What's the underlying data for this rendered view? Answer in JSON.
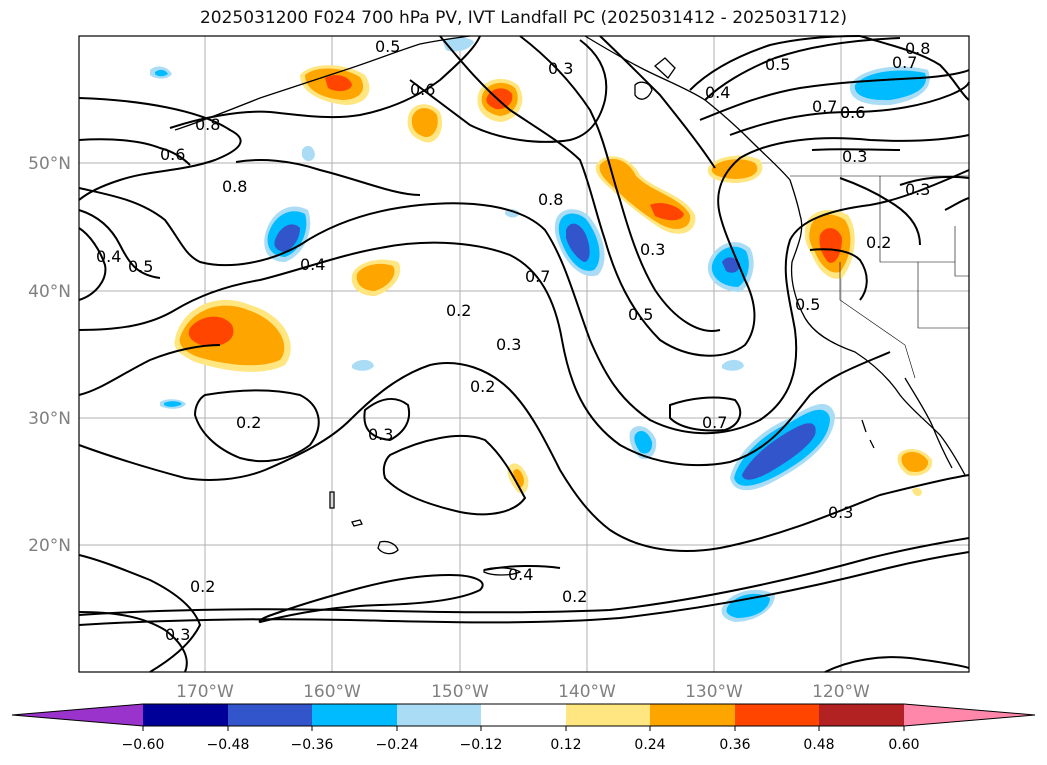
{
  "title": "2025031200 F024 700 hPa PV, IVT Landfall PC (2025031412 - 2025031712)",
  "map": {
    "lon_ticks": [
      "170°W",
      "160°W",
      "150°W",
      "140°W",
      "130°W",
      "120°W"
    ],
    "lat_ticks": [
      "50°N",
      "40°N",
      "30°N",
      "20°N"
    ],
    "contour_labels": [
      "0.5",
      "0.3",
      "0.8",
      "0.7",
      "0.5",
      "0.4",
      "0.6",
      "0.6",
      "0.8",
      "0.6",
      "0.7",
      "0.6",
      "0.3",
      "0.3",
      "0.2",
      "0.8",
      "0.4",
      "0.5",
      "0.4",
      "0.8",
      "0.3",
      "0.2",
      "0.7",
      "0.5",
      "0.5",
      "0.2",
      "0.3",
      "0.7",
      "0.2",
      "0.3",
      "0.4",
      "0.3",
      "0.2",
      "0.3",
      "0.2"
    ]
  },
  "colorbar": {
    "ticks": [
      "−0.60",
      "−0.48",
      "−0.36",
      "−0.24",
      "−0.12",
      "0.12",
      "0.24",
      "0.36",
      "0.48",
      "0.60"
    ],
    "colors": [
      "#9933cc",
      "#000099",
      "#3355cc",
      "#00bbff",
      "#aaddf5",
      "#ffffff",
      "#ffe680",
      "#ffa500",
      "#ff4500",
      "#b22222",
      "#ff88aa"
    ]
  }
}
